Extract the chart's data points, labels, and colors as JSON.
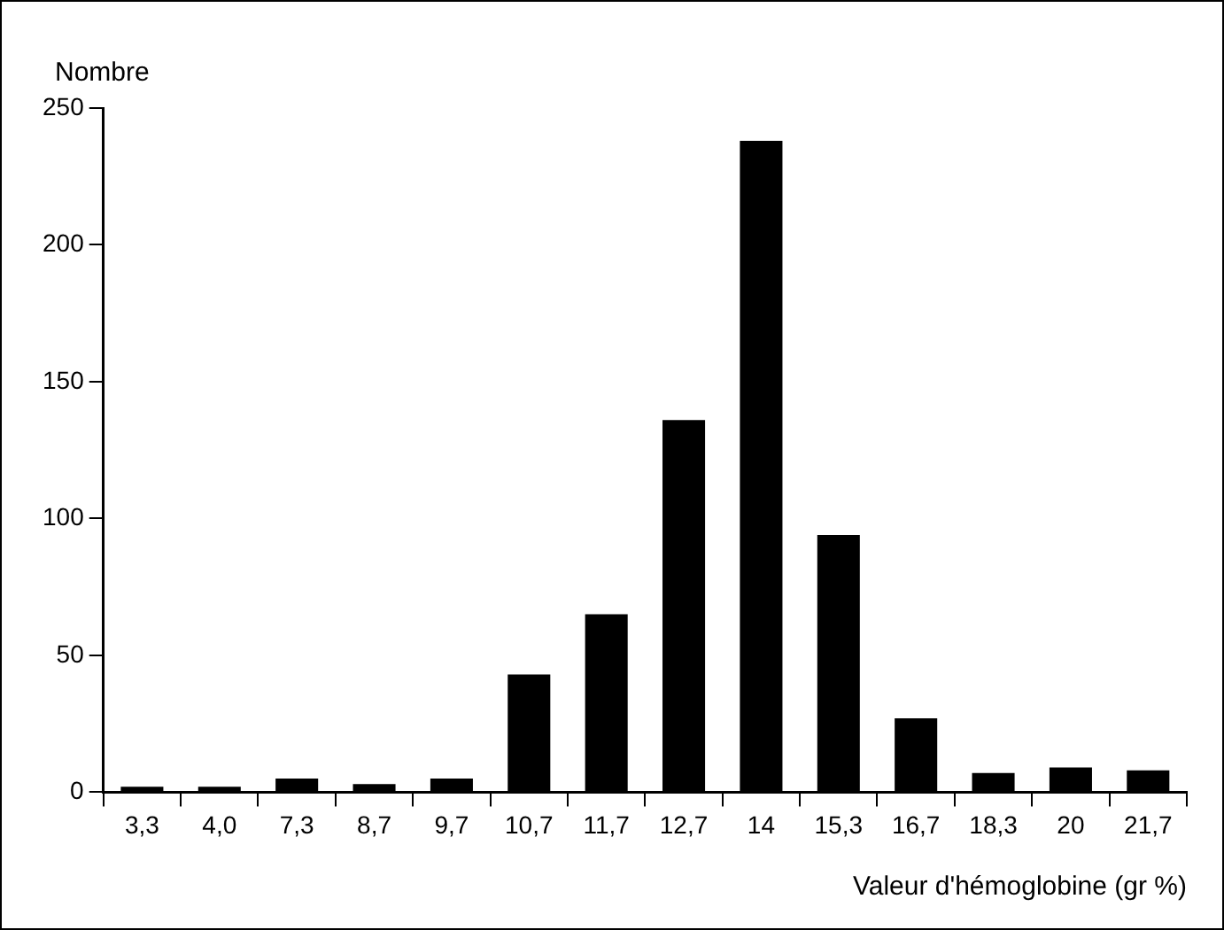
{
  "chart_data": {
    "type": "bar",
    "ylabel": "Nombre",
    "xlabel": "Valeur d'hémoglobine (gr %)",
    "categories": [
      "3,3",
      "4,0",
      "7,3",
      "8,7",
      "9,7",
      "10,7",
      "11,7",
      "12,7",
      "14",
      "15,3",
      "16,7",
      "18,3",
      "20",
      "21,7"
    ],
    "values": [
      2,
      2,
      5,
      3,
      5,
      43,
      65,
      136,
      238,
      94,
      27,
      7,
      9,
      8
    ],
    "color": "#000000",
    "ylim": [
      0,
      250
    ],
    "yticks": [
      0,
      50,
      100,
      150,
      200,
      250
    ],
    "grid": false,
    "legend": false
  }
}
